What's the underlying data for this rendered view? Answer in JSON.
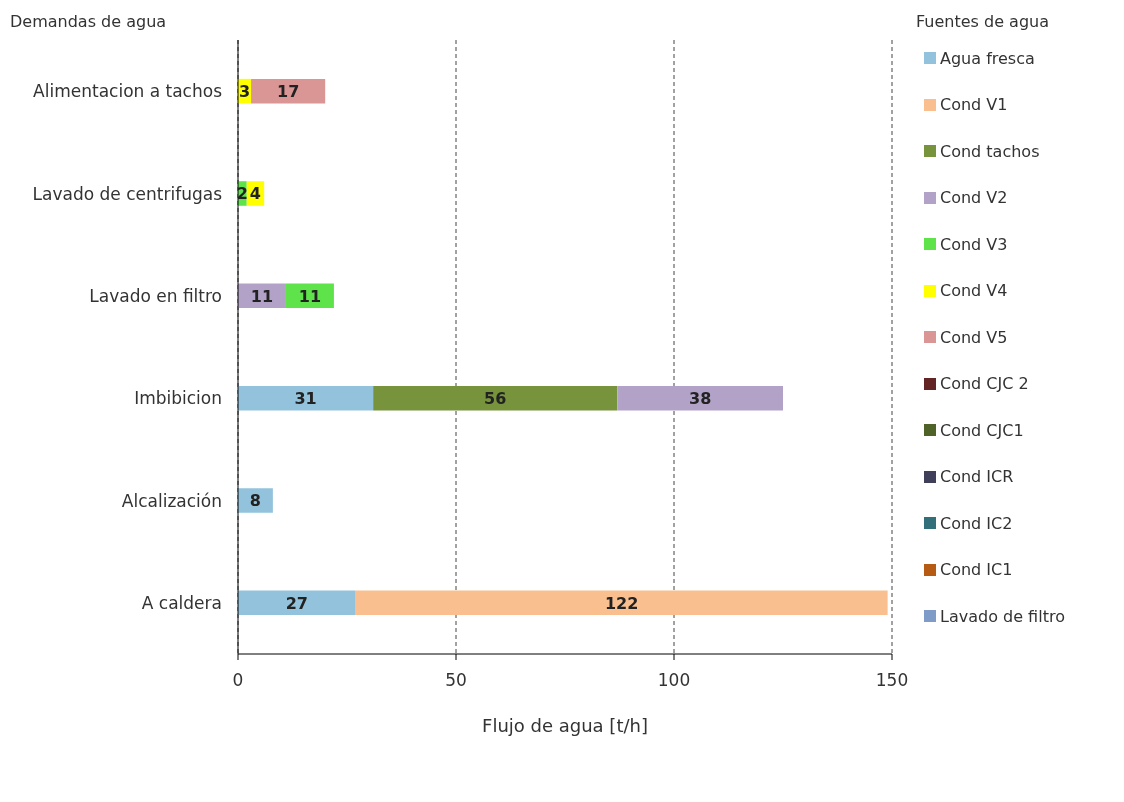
{
  "chart_data": {
    "type": "bar",
    "orientation": "horizontal",
    "stacked": true,
    "ylabel": "Demandas de agua",
    "xlabel": "Flujo de agua [t/h]",
    "legend_title": "Fuentes de agua",
    "categories": [
      "Alimentacion a tachos",
      "Lavado de centrifugas",
      "Lavado en filtro",
      "Imbibicion",
      "Alcalización",
      "A caldera"
    ],
    "series": [
      {
        "name": "Agua fresca",
        "color": "#93c3dc",
        "values": [
          null,
          null,
          null,
          31,
          8,
          27
        ]
      },
      {
        "name": "Cond V1",
        "color": "#fabf8f",
        "values": [
          null,
          null,
          null,
          null,
          null,
          122
        ]
      },
      {
        "name": "Cond tachos",
        "color": "#77933c",
        "values": [
          null,
          null,
          null,
          56,
          null,
          null
        ]
      },
      {
        "name": "Cond V2",
        "color": "#b3a2c7",
        "values": [
          null,
          null,
          11,
          38,
          null,
          null
        ]
      },
      {
        "name": "Cond V3",
        "color": "#5ee34a",
        "values": [
          null,
          2,
          11,
          null,
          null,
          null
        ]
      },
      {
        "name": "Cond V4",
        "color": "#ffff00",
        "values": [
          3,
          4,
          null,
          null,
          null,
          null
        ]
      },
      {
        "name": "Cond V5",
        "color": "#d99694",
        "values": [
          17,
          null,
          null,
          null,
          null,
          null
        ]
      },
      {
        "name": "Cond CJC 2",
        "color": "#632523",
        "values": [
          null,
          null,
          null,
          null,
          null,
          null
        ]
      },
      {
        "name": "Cond CJC1",
        "color": "#4f6228",
        "values": [
          null,
          null,
          null,
          null,
          null,
          null
        ]
      },
      {
        "name": "Cond ICR",
        "color": "#3f3f5a",
        "values": [
          null,
          null,
          null,
          null,
          null,
          null
        ]
      },
      {
        "name": "Cond IC2",
        "color": "#31707a",
        "values": [
          null,
          null,
          null,
          null,
          null,
          null
        ]
      },
      {
        "name": "Cond IC1",
        "color": "#b65b14",
        "values": [
          null,
          null,
          null,
          null,
          null,
          null
        ]
      },
      {
        "name": "Lavado de filtro",
        "color": "#7f9cc8",
        "values": [
          null,
          null,
          null,
          null,
          null,
          null
        ]
      }
    ],
    "xlim": [
      0,
      150
    ],
    "xticks": [
      0,
      50,
      100,
      150
    ],
    "grid": "x",
    "legend": "right",
    "data_labels": true
  }
}
